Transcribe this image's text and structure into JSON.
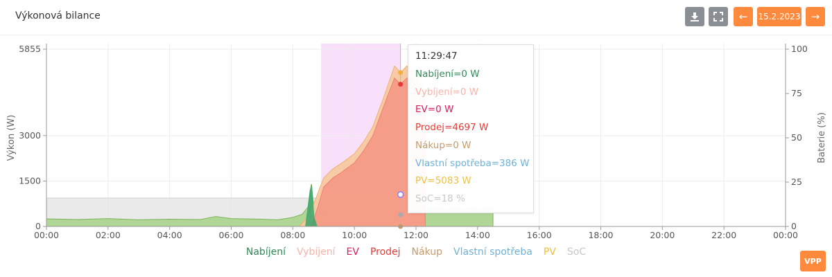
{
  "header": {
    "title": "Výkonová bilance",
    "date_label": "15.2.2023",
    "buttons": {
      "download_icon": "download-icon",
      "fullscreen_icon": "fullscreen-icon",
      "prev_icon": "arrow-left-icon",
      "next_icon": "arrow-right-icon"
    }
  },
  "tooltip": {
    "time": "11:29:47",
    "lines": [
      {
        "text": "Nabíjení=0 W",
        "color": "#2e8b57"
      },
      {
        "text": "Vybíjení=0 W",
        "color": "#f7b3a8"
      },
      {
        "text": "EV=0 W",
        "color": "#d81b60"
      },
      {
        "text": "Prodej=4697 W",
        "color": "#e53935"
      },
      {
        "text": "Nákup=0 W",
        "color": "#c49a6c"
      },
      {
        "text": "Vlastní spotřeba=386 W",
        "color": "#6fb1d6"
      },
      {
        "text": "PV=5083 W",
        "color": "#f0c040"
      },
      {
        "text": "SoC=18 %",
        "color": "#c8c8c8"
      }
    ]
  },
  "vpp_label": "VPP",
  "chart_data": {
    "type": "area",
    "ylabel": "Výkon (W)",
    "y2label": "Baterie (%)",
    "ylim": [
      0,
      5855
    ],
    "y2lim": [
      0,
      100
    ],
    "yticks": [
      "0",
      "1500",
      "3000",
      "5855"
    ],
    "y2ticks": [
      "0",
      "25",
      "50",
      "75",
      "100"
    ],
    "xticks": [
      "00:00",
      "02:00",
      "04:00",
      "06:00",
      "08:00",
      "10:00",
      "12:00",
      "14:00",
      "16:00",
      "18:00",
      "20:00",
      "22:00",
      "00:00"
    ],
    "highlight_range": [
      "08:55",
      "11:29"
    ],
    "cursor": "11:29:47",
    "legend": [
      {
        "name": "Nabíjení",
        "color": "#2e8b57"
      },
      {
        "name": "Vybíjení",
        "color": "#f7b3a8"
      },
      {
        "name": "EV",
        "color": "#d81b60"
      },
      {
        "name": "Prodej",
        "color": "#e53935"
      },
      {
        "name": "Nákup",
        "color": "#c49a6c"
      },
      {
        "name": "Vlastní spotřeba",
        "color": "#6fb1d6"
      },
      {
        "name": "PV",
        "color": "#f0c040"
      },
      {
        "name": "SoC",
        "color": "#c8c8c8"
      }
    ],
    "series": [
      {
        "name": "SoC",
        "unit": "%",
        "color": "#c8c8c8",
        "points": [
          [
            0,
            16
          ],
          [
            8.2,
            16
          ],
          [
            8.6,
            16
          ],
          [
            9,
            16
          ],
          [
            10.5,
            16
          ],
          [
            11.5,
            18
          ],
          [
            12,
            18
          ],
          [
            14.5,
            18
          ]
        ]
      },
      {
        "name": "Vlastní spotřeba",
        "unit": "W",
        "color": "#9ccf7a",
        "points": [
          [
            0,
            250
          ],
          [
            1,
            230
          ],
          [
            2,
            260
          ],
          [
            3,
            220
          ],
          [
            4,
            240
          ],
          [
            5,
            230
          ],
          [
            5.5,
            330
          ],
          [
            6,
            260
          ],
          [
            7,
            240
          ],
          [
            7.5,
            220
          ],
          [
            8,
            300
          ],
          [
            8.3,
            400
          ],
          [
            8.5,
            650
          ],
          [
            8.6,
            1400
          ],
          [
            8.7,
            500
          ],
          [
            9,
            420
          ],
          [
            9.5,
            380
          ],
          [
            10,
            390
          ],
          [
            10.5,
            420
          ],
          [
            10.7,
            700
          ],
          [
            11,
            450
          ],
          [
            11.5,
            386
          ],
          [
            12,
            390
          ],
          [
            12.3,
            500
          ],
          [
            12.5,
            600
          ],
          [
            13,
            550
          ],
          [
            13.5,
            600
          ],
          [
            14,
            580
          ],
          [
            14.5,
            560
          ]
        ]
      },
      {
        "name": "PV",
        "unit": "W",
        "color": "#f5c88a",
        "points": [
          [
            8.2,
            0
          ],
          [
            8.5,
            300
          ],
          [
            8.7,
            800
          ],
          [
            9,
            1600
          ],
          [
            9.3,
            1900
          ],
          [
            9.6,
            2100
          ],
          [
            10,
            2400
          ],
          [
            10.3,
            2800
          ],
          [
            10.6,
            3300
          ],
          [
            11,
            4400
          ],
          [
            11.3,
            5300
          ],
          [
            11.5,
            5083
          ],
          [
            11.7,
            5300
          ],
          [
            12,
            5000
          ],
          [
            12.3,
            4600
          ]
        ]
      },
      {
        "name": "Prodej",
        "unit": "W",
        "color": "#f4a28c",
        "points": [
          [
            8.6,
            0
          ],
          [
            8.8,
            600
          ],
          [
            9,
            1300
          ],
          [
            9.3,
            1600
          ],
          [
            9.6,
            1800
          ],
          [
            10,
            2100
          ],
          [
            10.3,
            2500
          ],
          [
            10.6,
            3000
          ],
          [
            11,
            4100
          ],
          [
            11.3,
            4900
          ],
          [
            11.5,
            4697
          ],
          [
            11.7,
            4900
          ],
          [
            12,
            4700
          ],
          [
            12.3,
            4300
          ]
        ]
      },
      {
        "name": "Nabíjení",
        "unit": "W",
        "color": "#2e8b57",
        "points": [
          [
            8.4,
            0
          ],
          [
            8.55,
            1200
          ],
          [
            8.62,
            1400
          ],
          [
            8.7,
            300
          ],
          [
            8.8,
            0
          ]
        ]
      }
    ]
  }
}
